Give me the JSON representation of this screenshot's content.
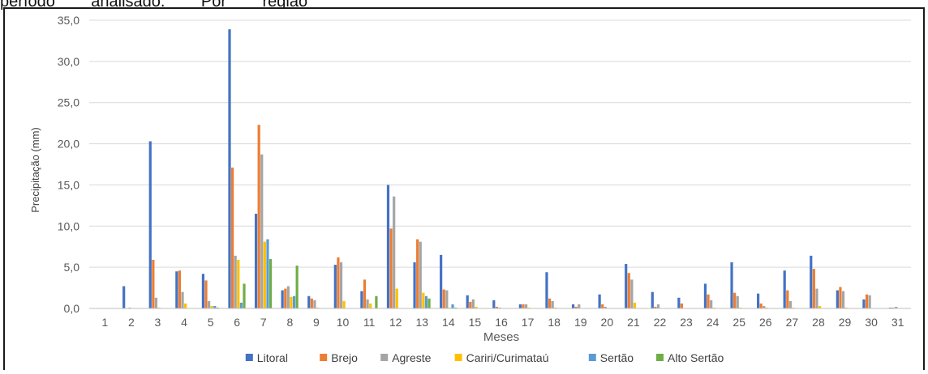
{
  "caption_fragment": "período        analisado.        Por        região",
  "chart_data": {
    "type": "bar",
    "xlabel": "Meses",
    "ylabel": "Precipitação (mm)",
    "ylim": [
      0,
      35
    ],
    "yticks": [
      "0,0",
      "5,0",
      "10,0",
      "15,0",
      "20,0",
      "25,0",
      "30,0",
      "35,0"
    ],
    "grid": true,
    "legend_position": "bottom",
    "categories": [
      "1",
      "2",
      "3",
      "4",
      "5",
      "6",
      "7",
      "8",
      "9",
      "10",
      "11",
      "12",
      "13",
      "14",
      "15",
      "16",
      "17",
      "18",
      "19",
      "20",
      "21",
      "22",
      "23",
      "24",
      "25",
      "26",
      "27",
      "28",
      "29",
      "30",
      "31"
    ],
    "series": [
      {
        "name": "Litoral",
        "color": "#4472C4",
        "values": [
          0,
          2.7,
          20.3,
          4.5,
          4.2,
          33.9,
          11.5,
          2.2,
          1.5,
          5.3,
          2.1,
          15.0,
          5.6,
          6.5,
          1.6,
          1.0,
          0.5,
          4.4,
          0.5,
          1.7,
          5.4,
          2.0,
          1.3,
          3.0,
          5.6,
          1.8,
          4.6,
          6.4,
          2.2,
          1.1,
          0.1
        ]
      },
      {
        "name": "Brejo",
        "color": "#ED7D31",
        "values": [
          0,
          0,
          5.9,
          4.6,
          3.4,
          17.1,
          22.3,
          2.4,
          1.2,
          6.2,
          3.5,
          9.7,
          8.4,
          2.3,
          0.8,
          0.2,
          0.5,
          1.2,
          0.2,
          0.5,
          4.3,
          0.2,
          0.6,
          1.7,
          1.9,
          0.6,
          2.2,
          4.8,
          2.6,
          1.7,
          0.1
        ]
      },
      {
        "name": "Agreste",
        "color": "#A5A5A5",
        "values": [
          0,
          0.1,
          1.3,
          2.0,
          0.9,
          6.4,
          18.7,
          2.7,
          1.0,
          5.6,
          1.1,
          13.6,
          8.1,
          2.2,
          1.1,
          0.1,
          0.5,
          0.9,
          0.5,
          0.2,
          3.5,
          0.5,
          0,
          1.0,
          1.5,
          0.3,
          0.9,
          2.4,
          2.1,
          1.6,
          0.2
        ]
      },
      {
        "name": "Cariri/Curimataú",
        "color": "#FFC000",
        "values": [
          0,
          0,
          0.1,
          0.6,
          0.3,
          5.9,
          8.1,
          1.4,
          0.1,
          0.9,
          0.6,
          2.4,
          1.9,
          0.1,
          0.2,
          0,
          0.1,
          0.1,
          0,
          0,
          0.7,
          0,
          0,
          0.1,
          0.1,
          0.1,
          0.1,
          0.3,
          0.1,
          0,
          0
        ]
      },
      {
        "name": "Sertão",
        "color": "#5B9BD5",
        "values": [
          0,
          0,
          0,
          0,
          0.3,
          0.7,
          8.4,
          1.5,
          0,
          0,
          0,
          0,
          1.5,
          0.5,
          0,
          0,
          0,
          0,
          0,
          0,
          0,
          0,
          0,
          0,
          0,
          0,
          0,
          0,
          0,
          0,
          0
        ]
      },
      {
        "name": "Alto Sertão",
        "color": "#70AD47",
        "values": [
          0,
          0,
          0,
          0,
          0.1,
          3.0,
          6.0,
          5.2,
          0,
          0,
          1.5,
          0,
          1.2,
          0.1,
          0,
          0,
          0,
          0,
          0,
          0,
          0,
          0,
          0,
          0,
          0,
          0,
          0,
          0,
          0,
          0,
          0
        ]
      }
    ]
  }
}
